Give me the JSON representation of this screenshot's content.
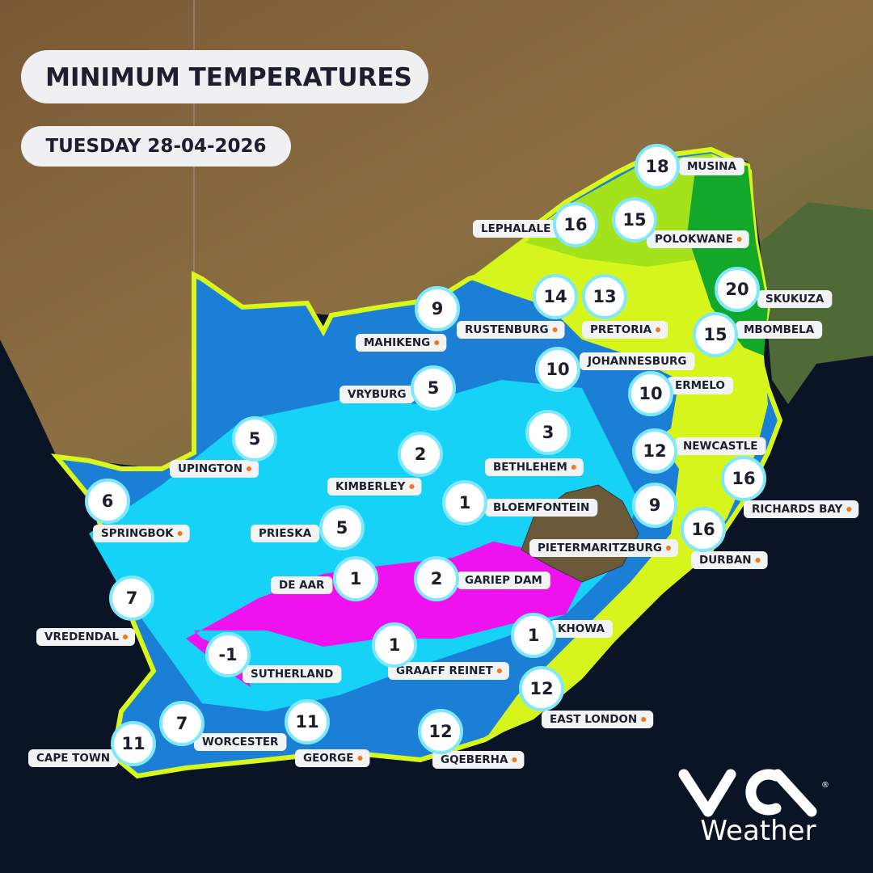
{
  "header": {
    "title": "MINIMUM TEMPERATURES",
    "date": "TUESDAY 28-04-2026"
  },
  "cities": [
    {
      "name": "MUSINA",
      "temp": 18
    },
    {
      "name": "LEPHALALE",
      "temp": 16
    },
    {
      "name": "POLOKWANE",
      "temp": 15
    },
    {
      "name": "SKUKUZA",
      "temp": 20
    },
    {
      "name": "MAHIKENG",
      "temp": 9
    },
    {
      "name": "RUSTENBURG",
      "temp": 14
    },
    {
      "name": "PRETORIA",
      "temp": 13
    },
    {
      "name": "MBOMBELA",
      "temp": 15
    },
    {
      "name": "JOHANNESBURG",
      "temp": 10
    },
    {
      "name": "ERMELO",
      "temp": 10
    },
    {
      "name": "VRYBURG",
      "temp": 5
    },
    {
      "name": "UPINGTON",
      "temp": 5
    },
    {
      "name": "KIMBERLEY",
      "temp": 2
    },
    {
      "name": "BETHLEHEM",
      "temp": 3
    },
    {
      "name": "NEWCASTLE",
      "temp": 12
    },
    {
      "name": "SPRINGBOK",
      "temp": 6
    },
    {
      "name": "BLOEMFONTEIN",
      "temp": 1
    },
    {
      "name": "RICHARDS BAY",
      "temp": 16
    },
    {
      "name": "PIETERMARITZBURG",
      "temp": 9
    },
    {
      "name": "DURBAN",
      "temp": 16
    },
    {
      "name": "PRIESKA",
      "temp": 5
    },
    {
      "name": "DE AAR",
      "temp": 1
    },
    {
      "name": "GARIEP DAM",
      "temp": 2
    },
    {
      "name": "VREDENDAL",
      "temp": 7
    },
    {
      "name": "KHOWA",
      "temp": 1
    },
    {
      "name": "SUTHERLAND",
      "temp": -1
    },
    {
      "name": "GRAAFF REINET",
      "temp": 1
    },
    {
      "name": "EAST LONDON",
      "temp": 12
    },
    {
      "name": "CAPE TOWN",
      "temp": 11
    },
    {
      "name": "WORCESTER",
      "temp": 7
    },
    {
      "name": "GEORGE",
      "temp": 11
    },
    {
      "name": "GQEBERHA",
      "temp": 12
    }
  ],
  "logo": {
    "text": "Weather"
  }
}
